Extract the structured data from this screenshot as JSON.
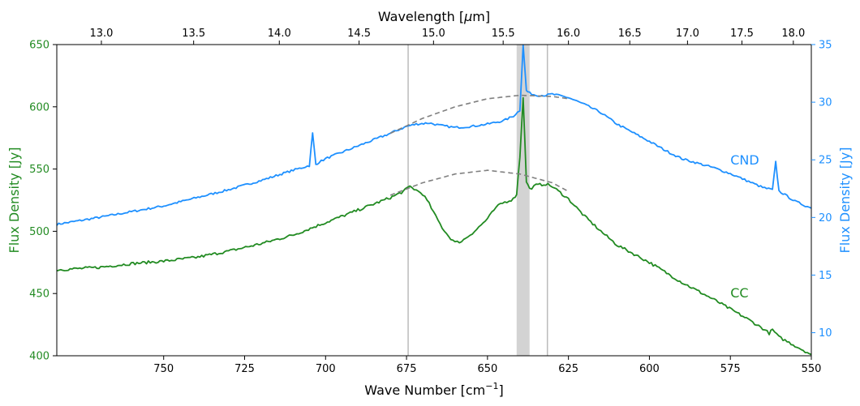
{
  "chart_data": {
    "type": "line",
    "xlabel_bottom": "Wave Number [cm",
    "xlabel_bottom_sup": "−1",
    "xlabel_bottom_tail": "]",
    "xlabel_top_pre": "Wavelength [",
    "xlabel_top_mu": "μ",
    "xlabel_top_post": "m]",
    "ylabel_left": "Flux Density [Jy]",
    "ylabel_right": "Flux Density [Jy]",
    "xlim": [
      783,
      550
    ],
    "ylim_left": [
      400,
      650
    ],
    "ylim_right": [
      8,
      35
    ],
    "x_ticks": [
      750,
      725,
      700,
      675,
      650,
      625,
      600,
      575,
      550
    ],
    "x_tick_labels": [
      "750",
      "725",
      "700",
      "675",
      "650",
      "625",
      "600",
      "575",
      "550"
    ],
    "top_ticks": [
      13.0,
      13.5,
      14.0,
      14.5,
      15.0,
      15.5,
      16.0,
      16.5,
      17.0,
      17.5,
      18.0
    ],
    "top_tick_labels": [
      "13.0",
      "13.5",
      "14.0",
      "14.5",
      "15.0",
      "15.5",
      "16.0",
      "16.5",
      "17.0",
      "17.5",
      "18.0"
    ],
    "yleft_ticks": [
      400,
      450,
      500,
      550,
      600,
      650
    ],
    "yleft_tick_labels": [
      "400",
      "450",
      "500",
      "550",
      "600",
      "650"
    ],
    "yright_ticks": [
      10,
      15,
      20,
      25,
      30,
      35
    ],
    "yright_tick_labels": [
      "10",
      "15",
      "20",
      "25",
      "30",
      "35"
    ],
    "vertical_lines": [
      674.5,
      631.5
    ],
    "shaded_band": [
      641.0,
      637.0
    ],
    "colors": {
      "cc": "#228B22",
      "cnd": "#1E90FF",
      "continuum": "#808080",
      "vline": "#bbbbbb",
      "band": "#d3d3d3",
      "cnd_overlay": "#5b7fa6",
      "cc_overlay": "#4e7a4e"
    },
    "series": [
      {
        "name": "CND",
        "label": "CND",
        "axis": "right",
        "x": [
          783,
          770,
          760,
          750,
          740,
          730,
          720,
          710,
          705,
          704,
          703,
          702,
          700,
          690,
          680,
          675,
          672,
          668,
          665,
          660,
          655,
          650,
          645,
          642,
          640,
          639,
          638,
          637,
          635,
          632,
          630,
          625,
          620,
          615,
          610,
          600,
          595,
          590,
          580,
          575,
          570,
          565,
          562,
          561,
          560,
          555,
          550
        ],
        "values": [
          19.4,
          20.0,
          20.5,
          21.0,
          21.7,
          22.4,
          23.2,
          24.1,
          24.5,
          27.3,
          24.6,
          24.8,
          25.1,
          26.2,
          27.3,
          27.9,
          28.1,
          28.2,
          28.0,
          27.8,
          27.9,
          28.1,
          28.4,
          28.8,
          29.3,
          35.0,
          31.0,
          30.8,
          30.6,
          30.6,
          30.7,
          30.4,
          29.8,
          29.1,
          28.1,
          26.6,
          25.8,
          25.1,
          24.3,
          23.8,
          23.2,
          22.6,
          22.4,
          24.8,
          22.3,
          21.4,
          20.8
        ]
      },
      {
        "name": "CC",
        "label": "CC",
        "axis": "left",
        "x": [
          783,
          770,
          760,
          750,
          740,
          730,
          720,
          710,
          700,
          690,
          680,
          676,
          674,
          672,
          670,
          668,
          666,
          664,
          662,
          660,
          658,
          656,
          654,
          652,
          650,
          648,
          646,
          644,
          642,
          641,
          640,
          639,
          638,
          637,
          635,
          632,
          630,
          625,
          620,
          615,
          610,
          600,
          590,
          580,
          570,
          565,
          563,
          562,
          560,
          555,
          550
        ],
        "values": [
          469,
          471,
          474,
          476,
          479,
          484,
          490,
          497,
          507,
          517,
          527,
          532,
          536,
          533,
          530,
          522,
          512,
          503,
          496,
          491,
          492,
          496,
          500,
          505,
          510,
          517,
          522,
          524,
          526,
          530,
          560,
          608,
          540,
          534,
          537,
          538,
          536,
          526,
          512,
          500,
          489,
          475,
          459,
          445,
          430,
          422,
          418,
          421,
          415,
          408,
          401
        ]
      },
      {
        "name": "CND continuum",
        "axis": "right",
        "x": [
          680,
          670,
          660,
          650,
          640,
          630,
          625
        ],
        "values": [
          27.3,
          28.6,
          29.6,
          30.3,
          30.6,
          30.5,
          30.3
        ]
      },
      {
        "name": "CC continuum",
        "axis": "left",
        "x": [
          680,
          670,
          660,
          650,
          640,
          630,
          625
        ],
        "values": [
          529,
          539,
          546,
          549,
          546,
          539,
          532
        ]
      }
    ]
  }
}
